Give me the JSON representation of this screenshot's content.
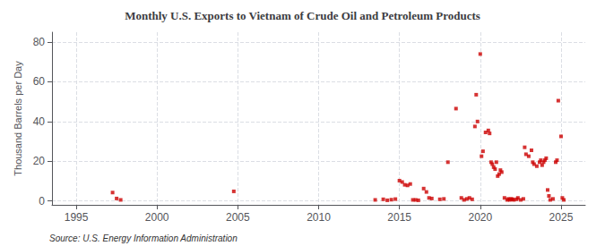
{
  "chart_data": {
    "type": "scatter",
    "title": "Monthly U.S. Exports to Vietnam of Crude Oil and Petroleum Products",
    "ylabel": "Thousand Barrels per Day",
    "annotations": [
      "Source: U.S. Energy Information Administration"
    ],
    "color": "#cc0000",
    "marker": "square",
    "grid": true,
    "xlim": [
      1993.5,
      2026.5
    ],
    "ylim": [
      -2,
      85
    ],
    "xticks": [
      1995,
      2000,
      2005,
      2010,
      2015,
      2020,
      2025
    ],
    "yticks": [
      0,
      20,
      40,
      60,
      80
    ],
    "x": [
      1997.25,
      1997.5,
      1997.75,
      2004.75,
      2013.5,
      2014.0,
      2014.25,
      2014.5,
      2014.75,
      2015.0,
      2015.17,
      2015.33,
      2015.5,
      2015.67,
      2015.83,
      2016.0,
      2016.17,
      2016.5,
      2016.67,
      2016.83,
      2017.0,
      2017.5,
      2017.75,
      2018.0,
      2018.5,
      2018.83,
      2019.0,
      2019.17,
      2019.33,
      2019.5,
      2019.67,
      2019.75,
      2019.83,
      2020.0,
      2020.08,
      2020.17,
      2020.33,
      2020.5,
      2020.58,
      2020.67,
      2020.75,
      2020.83,
      2020.92,
      2021.0,
      2021.08,
      2021.17,
      2021.25,
      2021.33,
      2021.5,
      2021.67,
      2021.75,
      2021.83,
      2021.92,
      2022.0,
      2022.08,
      2022.25,
      2022.33,
      2022.5,
      2022.67,
      2022.75,
      2022.83,
      2023.0,
      2023.17,
      2023.25,
      2023.33,
      2023.5,
      2023.67,
      2023.75,
      2023.83,
      2023.92,
      2024.0,
      2024.08,
      2024.17,
      2024.25,
      2024.33,
      2024.5,
      2024.67,
      2024.75,
      2024.83,
      2025.0,
      2025.08,
      2025.17
    ],
    "values": [
      4.2,
      1.2,
      0.5,
      4.8,
      0.5,
      0.8,
      0.3,
      0.6,
      0.9,
      10.2,
      9.5,
      8.1,
      7.8,
      8.5,
      0.5,
      0.5,
      0.3,
      6.2,
      4.5,
      1.5,
      1.2,
      0.8,
      1.0,
      19.5,
      46.5,
      1.5,
      0.5,
      1.0,
      1.5,
      0.8,
      37.5,
      53.5,
      40.0,
      74.0,
      22.5,
      25.0,
      34.5,
      35.5,
      34.0,
      19.5,
      18.5,
      17.0,
      16.0,
      19.5,
      12.5,
      13.5,
      15.5,
      14.5,
      1.5,
      0.5,
      1.0,
      0.5,
      1.0,
      0.8,
      0.5,
      0.8,
      1.5,
      0.5,
      1.0,
      27.0,
      23.5,
      22.5,
      25.5,
      19.5,
      18.5,
      17.5,
      19.5,
      20.5,
      18.0,
      19.5,
      20.5,
      21.5,
      5.5,
      2.5,
      0.5,
      1.0,
      19.5,
      20.5,
      50.5,
      32.5,
      1.5,
      0.5
    ]
  }
}
